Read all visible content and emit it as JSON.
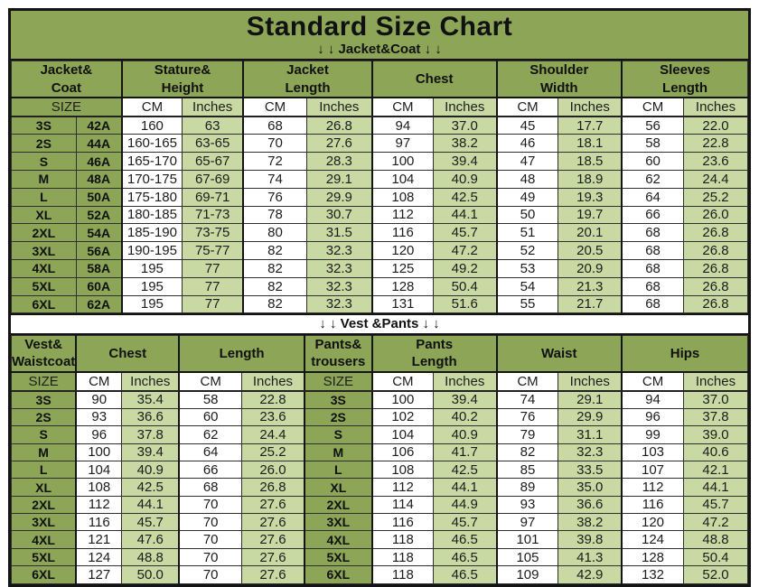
{
  "title": "Standard Size Chart",
  "banners": {
    "jacket_coat": "↓ ↓  Jacket&Coat ↓ ↓",
    "vest_pants": "↓ ↓  Vest &Pants ↓ ↓"
  },
  "colors": {
    "header_green": "#8da557",
    "cell_light_green": "#c8d9a3",
    "cm_cell_white": "#ffffff",
    "border_black": "#141414"
  },
  "jacket_table": {
    "header_groups": [
      {
        "lines": [
          "Jacket&",
          "Coat"
        ],
        "span": 2
      },
      {
        "lines": [
          "Stature&",
          "Height"
        ],
        "span": 2
      },
      {
        "lines": [
          "Jacket",
          "Length"
        ],
        "span": 2
      },
      {
        "lines": [
          "Chest"
        ],
        "span": 2
      },
      {
        "lines": [
          "Shoulder",
          "Width"
        ],
        "span": 2
      },
      {
        "lines": [
          "Sleeves",
          "Length"
        ],
        "span": 2
      }
    ],
    "subheader": [
      {
        "label": "SIZE",
        "span": 2,
        "kind": "size"
      },
      {
        "label": "CM",
        "kind": "cm"
      },
      {
        "label": "Inches",
        "kind": "in"
      },
      {
        "label": "CM",
        "kind": "cm"
      },
      {
        "label": "Inches",
        "kind": "in"
      },
      {
        "label": "CM",
        "kind": "cm"
      },
      {
        "label": "Inches",
        "kind": "in"
      },
      {
        "label": "CM",
        "kind": "cm"
      },
      {
        "label": "Inches",
        "kind": "in"
      },
      {
        "label": "CM",
        "kind": "cm"
      },
      {
        "label": "Inches",
        "kind": "in"
      }
    ],
    "cell_kinds": [
      "size",
      "size",
      "cm",
      "in",
      "cm",
      "in",
      "cm",
      "in",
      "cm",
      "in",
      "cm",
      "in"
    ],
    "rows": [
      [
        "3S",
        "42A",
        "160",
        "63",
        "68",
        "26.8",
        "94",
        "37.0",
        "45",
        "17.7",
        "56",
        "22.0"
      ],
      [
        "2S",
        "44A",
        "160-165",
        "63-65",
        "70",
        "27.6",
        "97",
        "38.2",
        "46",
        "18.1",
        "58",
        "22.8"
      ],
      [
        "S",
        "46A",
        "165-170",
        "65-67",
        "72",
        "28.3",
        "100",
        "39.4",
        "47",
        "18.5",
        "60",
        "23.6"
      ],
      [
        "M",
        "48A",
        "170-175",
        "67-69",
        "74",
        "29.1",
        "104",
        "40.9",
        "48",
        "18.9",
        "62",
        "24.4"
      ],
      [
        "L",
        "50A",
        "175-180",
        "69-71",
        "76",
        "29.9",
        "108",
        "42.5",
        "49",
        "19.3",
        "64",
        "25.2"
      ],
      [
        "XL",
        "52A",
        "180-185",
        "71-73",
        "78",
        "30.7",
        "112",
        "44.1",
        "50",
        "19.7",
        "66",
        "26.0"
      ],
      [
        "2XL",
        "54A",
        "185-190",
        "73-75",
        "80",
        "31.5",
        "116",
        "45.7",
        "51",
        "20.1",
        "68",
        "26.8"
      ],
      [
        "3XL",
        "56A",
        "190-195",
        "75-77",
        "82",
        "32.3",
        "120",
        "47.2",
        "52",
        "20.5",
        "68",
        "26.8"
      ],
      [
        "4XL",
        "58A",
        "195",
        "77",
        "82",
        "32.3",
        "125",
        "49.2",
        "53",
        "20.9",
        "68",
        "26.8"
      ],
      [
        "5XL",
        "60A",
        "195",
        "77",
        "82",
        "32.3",
        "128",
        "50.4",
        "54",
        "21.3",
        "68",
        "26.8"
      ],
      [
        "6XL",
        "62A",
        "195",
        "77",
        "82",
        "32.3",
        "131",
        "51.6",
        "55",
        "21.7",
        "68",
        "26.8"
      ]
    ]
  },
  "vest_pants_table": {
    "header_groups": [
      {
        "lines": [
          "Vest&",
          "Waistcoat"
        ],
        "span": 1
      },
      {
        "lines": [
          "Chest"
        ],
        "span": 2
      },
      {
        "lines": [
          "Length"
        ],
        "span": 2
      },
      {
        "lines": [
          "Pants&",
          "trousers"
        ],
        "span": 1
      },
      {
        "lines": [
          "Pants",
          "Length"
        ],
        "span": 2
      },
      {
        "lines": [
          "Waist"
        ],
        "span": 2
      },
      {
        "lines": [
          "Hips"
        ],
        "span": 2
      }
    ],
    "subheader": [
      {
        "label": "SIZE",
        "kind": "size"
      },
      {
        "label": "CM",
        "kind": "cm"
      },
      {
        "label": "Inches",
        "kind": "in"
      },
      {
        "label": "CM",
        "kind": "cm"
      },
      {
        "label": "Inches",
        "kind": "in"
      },
      {
        "label": "SIZE",
        "kind": "size"
      },
      {
        "label": "CM",
        "kind": "cm"
      },
      {
        "label": "Inches",
        "kind": "in"
      },
      {
        "label": "CM",
        "kind": "cm"
      },
      {
        "label": "Inches",
        "kind": "in"
      },
      {
        "label": "CM",
        "kind": "cm"
      },
      {
        "label": "Inches",
        "kind": "in"
      }
    ],
    "cell_kinds": [
      "size",
      "cm",
      "in",
      "cm",
      "in",
      "size",
      "cm",
      "in",
      "cm",
      "in",
      "cm",
      "in"
    ],
    "rows": [
      [
        "3S",
        "90",
        "35.4",
        "58",
        "22.8",
        "3S",
        "100",
        "39.4",
        "74",
        "29.1",
        "94",
        "37.0"
      ],
      [
        "2S",
        "93",
        "36.6",
        "60",
        "23.6",
        "2S",
        "102",
        "40.2",
        "76",
        "29.9",
        "96",
        "37.8"
      ],
      [
        "S",
        "96",
        "37.8",
        "62",
        "24.4",
        "S",
        "104",
        "40.9",
        "79",
        "31.1",
        "99",
        "39.0"
      ],
      [
        "M",
        "100",
        "39.4",
        "64",
        "25.2",
        "M",
        "106",
        "41.7",
        "82",
        "32.3",
        "103",
        "40.6"
      ],
      [
        "L",
        "104",
        "40.9",
        "66",
        "26.0",
        "L",
        "108",
        "42.5",
        "85",
        "33.5",
        "107",
        "42.1"
      ],
      [
        "XL",
        "108",
        "42.5",
        "68",
        "26.8",
        "XL",
        "112",
        "44.1",
        "89",
        "35.0",
        "112",
        "44.1"
      ],
      [
        "2XL",
        "112",
        "44.1",
        "70",
        "27.6",
        "2XL",
        "114",
        "44.9",
        "93",
        "36.6",
        "116",
        "45.7"
      ],
      [
        "3XL",
        "116",
        "45.7",
        "70",
        "27.6",
        "3XL",
        "116",
        "45.7",
        "97",
        "38.2",
        "120",
        "47.2"
      ],
      [
        "4XL",
        "121",
        "47.6",
        "70",
        "27.6",
        "4XL",
        "118",
        "46.5",
        "101",
        "39.8",
        "124",
        "48.8"
      ],
      [
        "5XL",
        "124",
        "48.8",
        "70",
        "27.6",
        "5XL",
        "118",
        "46.5",
        "105",
        "41.3",
        "128",
        "50.4"
      ],
      [
        "6XL",
        "127",
        "50.0",
        "70",
        "27.6",
        "6XL",
        "118",
        "46.5",
        "109",
        "42.9",
        "132",
        "52.0"
      ]
    ]
  }
}
